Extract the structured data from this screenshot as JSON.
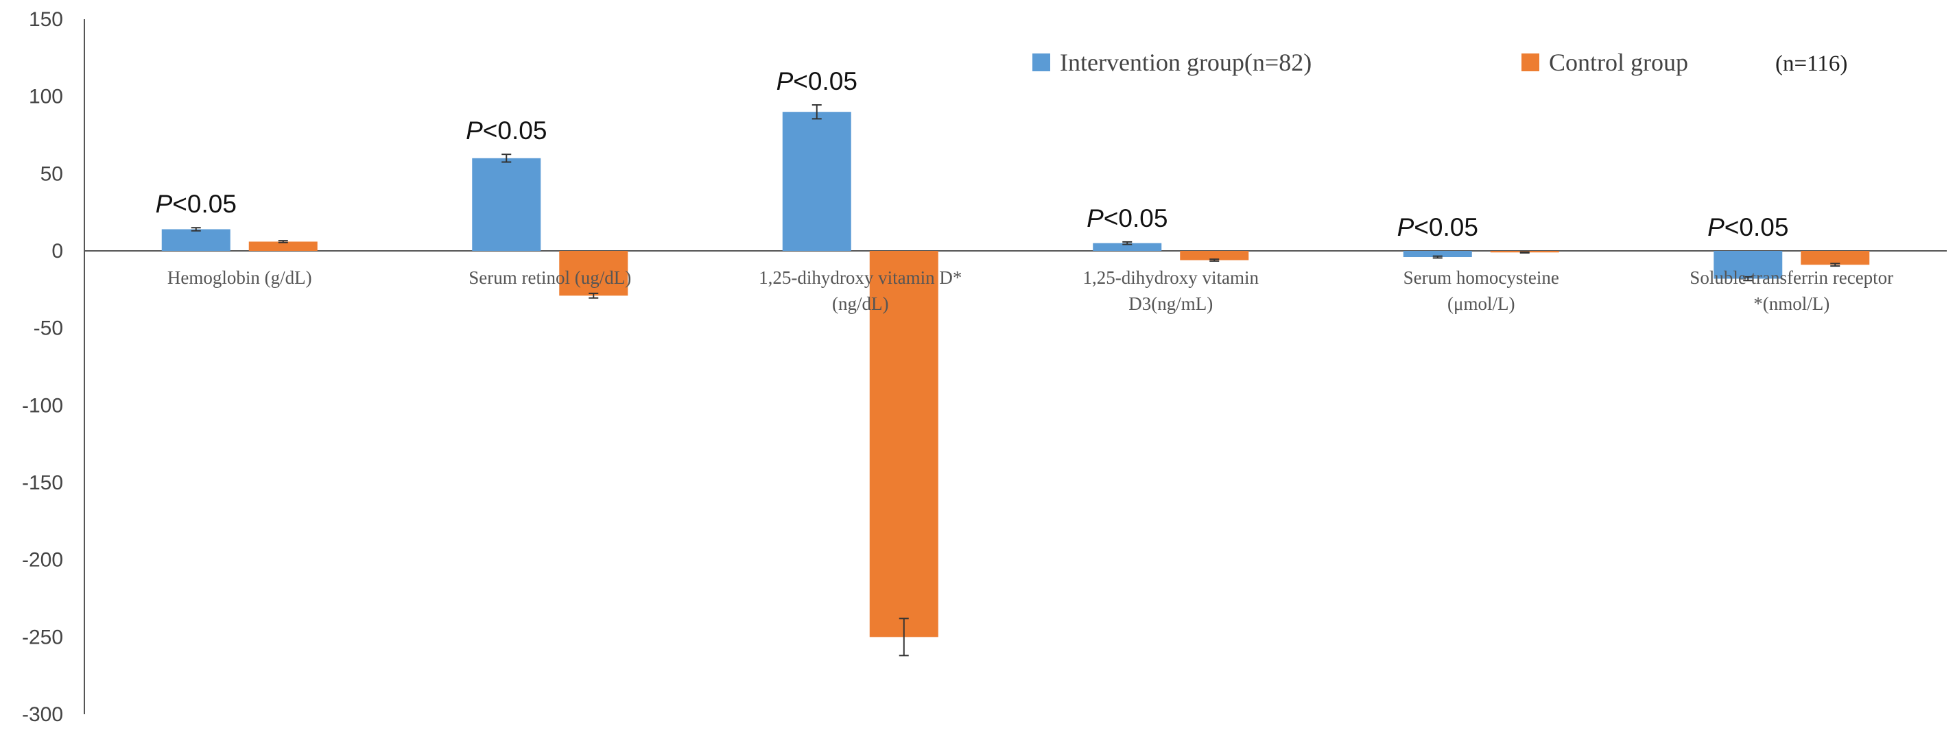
{
  "chart_data": {
    "type": "bar",
    "title": "",
    "xlabel": "",
    "ylabel": "",
    "ylim": [
      -300,
      150
    ],
    "yticks": [
      150,
      100,
      50,
      0,
      -50,
      -100,
      -150,
      -200,
      -250,
      -300
    ],
    "grid": false,
    "legend_position": "top-right",
    "categories": [
      {
        "line1": "Hemoglobin (g/dL)",
        "line2": ""
      },
      {
        "line1": "Serum retinol (ug/dL)",
        "line2": ""
      },
      {
        "line1": "1,25-dihydroxy vitamin D*",
        "line2": "(ng/dL)"
      },
      {
        "line1": "1,25-dihydroxy vitamin",
        "line2": "D3(ng/mL)"
      },
      {
        "line1": "Serum homocysteine",
        "line2": "(μmol/L)"
      },
      {
        "line1": "Soluble transferrin receptor",
        "line2": "*(nmol/L)"
      }
    ],
    "series": [
      {
        "name": "Intervention group(n=82)",
        "color": "#5B9BD5",
        "values": [
          14,
          60,
          90,
          5,
          -4,
          -18
        ],
        "errors": [
          1,
          2.5,
          4.5,
          0.8,
          0.6,
          1.2
        ]
      },
      {
        "name": "Control group",
        "name_suffix": "(n=116)",
        "color": "#ED7D31",
        "values": [
          6,
          -29,
          -250,
          -6,
          -1,
          -9
        ],
        "errors": [
          0.6,
          1.5,
          12,
          0.6,
          0.3,
          0.8
        ]
      }
    ],
    "annotations": [
      {
        "category_index": 0,
        "series_index": 0,
        "p_symbol": "P",
        "text": "<0.05"
      },
      {
        "category_index": 1,
        "series_index": 0,
        "p_symbol": "P",
        "text": "<0.05"
      },
      {
        "category_index": 2,
        "series_index": 0,
        "p_symbol": "P",
        "text": "<0.05"
      },
      {
        "category_index": 3,
        "series_index": 0,
        "p_symbol": "P",
        "text": "<0.05"
      },
      {
        "category_index": 4,
        "series_index": 0,
        "p_symbol": "P",
        "text": "<0.05"
      },
      {
        "category_index": 5,
        "series_index": 0,
        "p_symbol": "P",
        "text": "<0.05"
      }
    ]
  }
}
